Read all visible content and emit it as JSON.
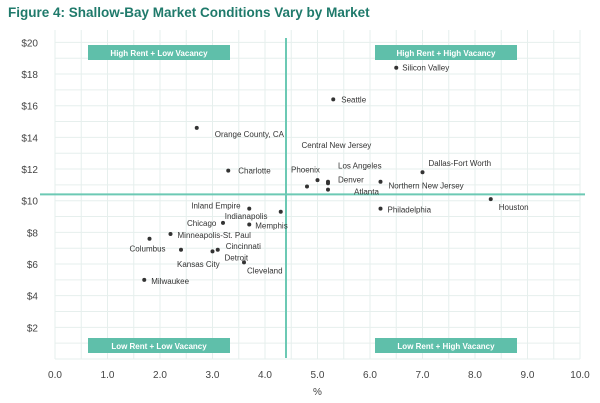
{
  "chart_data": {
    "type": "scatter",
    "title": "Figure 4: Shallow-Bay Market Conditions Vary by Market",
    "xlabel": "%",
    "ylabel": "",
    "xlim": [
      0,
      10
    ],
    "ylim": [
      0,
      20
    ],
    "xticks": [
      "0.0",
      "1.0",
      "2.0",
      "3.0",
      "4.0",
      "5.0",
      "6.0",
      "7.0",
      "8.0",
      "9.0",
      "10.0"
    ],
    "yticks": [
      "$2",
      "$4",
      "$6",
      "$8",
      "$10",
      "$12",
      "$14",
      "$16",
      "$18",
      "$20"
    ],
    "grid": true,
    "divider": {
      "x": 4.4,
      "y": 10.4
    },
    "quadrants": [
      "High Rent + Low Vacancy",
      "High Rent + High Vacancy",
      "Low Rent + Low Vacancy",
      "Low Rent + High Vacancy"
    ],
    "points": [
      {
        "name": "Silicon Valley",
        "x": 6.5,
        "y": 18.4
      },
      {
        "name": "Seattle",
        "x": 5.3,
        "y": 16.4
      },
      {
        "name": "Orange County, CA",
        "x": 2.7,
        "y": 14.6
      },
      {
        "name": "Charlotte",
        "x": 3.3,
        "y": 11.9
      },
      {
        "name": "Dallas-Fort Worth",
        "x": 7.0,
        "y": 11.8
      },
      {
        "name": "Central New Jersey",
        "x": 5.0,
        "y": 11.3
      },
      {
        "name": "Phoenix",
        "x": 4.8,
        "y": 10.9
      },
      {
        "name": "Los Angeles",
        "x": 5.2,
        "y": 11.2
      },
      {
        "name": "Denver",
        "x": 5.2,
        "y": 11.1
      },
      {
        "name": "Atlanta",
        "x": 5.2,
        "y": 10.7
      },
      {
        "name": "Northern New Jersey",
        "x": 6.2,
        "y": 11.2
      },
      {
        "name": "Philadelphia",
        "x": 6.2,
        "y": 9.5
      },
      {
        "name": "Houston",
        "x": 8.3,
        "y": 10.1
      },
      {
        "name": "Inland Empire",
        "x": 3.7,
        "y": 9.5
      },
      {
        "name": "Indianapolis",
        "x": 4.3,
        "y": 9.3
      },
      {
        "name": "Chicago",
        "x": 3.2,
        "y": 8.6
      },
      {
        "name": "Memphis",
        "x": 3.7,
        "y": 8.5
      },
      {
        "name": "Minneapolis-St. Paul",
        "x": 2.2,
        "y": 7.9
      },
      {
        "name": "Columbus",
        "x": 1.8,
        "y": 7.6
      },
      {
        "name": "Kansas City",
        "x": 2.4,
        "y": 6.9
      },
      {
        "name": "Detroit",
        "x": 3.0,
        "y": 6.8
      },
      {
        "name": "Cincinnati",
        "x": 3.1,
        "y": 6.9
      },
      {
        "name": "Cleveland",
        "x": 3.6,
        "y": 6.1
      },
      {
        "name": "Milwaukee",
        "x": 1.7,
        "y": 5.0
      }
    ]
  }
}
